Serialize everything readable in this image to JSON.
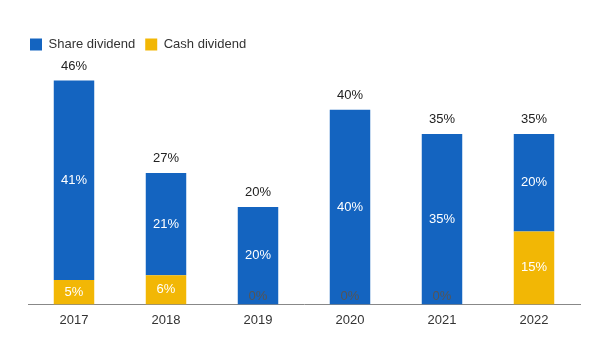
{
  "chart_data": {
    "type": "bar",
    "stacked": true,
    "orientation": "vertical",
    "categories": [
      "2017",
      "2018",
      "2019",
      "2020",
      "2021",
      "2022"
    ],
    "series": [
      {
        "name": "Share dividend",
        "color": "#1464c0",
        "values": [
          41,
          21,
          20,
          40,
          35,
          20
        ],
        "value_labels": [
          "41%",
          "21%",
          "20%",
          "40%",
          "35%",
          "20%"
        ]
      },
      {
        "name": "Cash dividend",
        "color": "#f2b705",
        "values": [
          5,
          6,
          0,
          0,
          0,
          15
        ],
        "value_labels": [
          "5%",
          "6%",
          "0%",
          "0%",
          "0%",
          "15%"
        ]
      }
    ],
    "totals": [
      46,
      27,
      20,
      40,
      35,
      35
    ],
    "total_labels": [
      "46%",
      "27%",
      "20%",
      "40%",
      "35%",
      "35%"
    ],
    "ylim": [
      0,
      50
    ],
    "grid": false,
    "legend": "upper left",
    "data_labels": true,
    "tick_labels": "x"
  }
}
